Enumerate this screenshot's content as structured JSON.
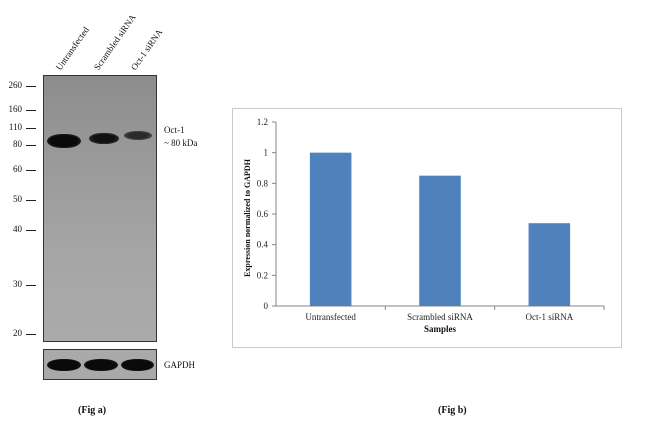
{
  "blot": {
    "lanes": [
      "Untransfected",
      "Scrambled siRNA",
      "Oct-1 siRNA"
    ],
    "mw_markers": [
      "260",
      "160",
      "110",
      "80",
      "60",
      "50",
      "40",
      "30",
      "20"
    ],
    "target_label": "Oct-1",
    "target_size": "~ 80 kDa",
    "loading_control": "GAPDH",
    "band_intensity": [
      1.0,
      0.85,
      0.55
    ]
  },
  "figure_labels": {
    "a": "(Fig a)",
    "b": "(Fig b)"
  },
  "chart_data": {
    "type": "bar",
    "categories": [
      "Untransfected",
      "Scrambled siRNA",
      "Oct-1 siRNA"
    ],
    "values": [
      1.0,
      0.85,
      0.54
    ],
    "xlabel": "Samples",
    "ylabel": "Expression  normalized to GAPDH",
    "ylim": [
      0,
      1.2
    ],
    "yticks": [
      "0",
      "0.2",
      "0.4",
      "0.6",
      "0.8",
      "1",
      "1.2"
    ],
    "bar_color": "#4f81bd",
    "grid": false
  }
}
